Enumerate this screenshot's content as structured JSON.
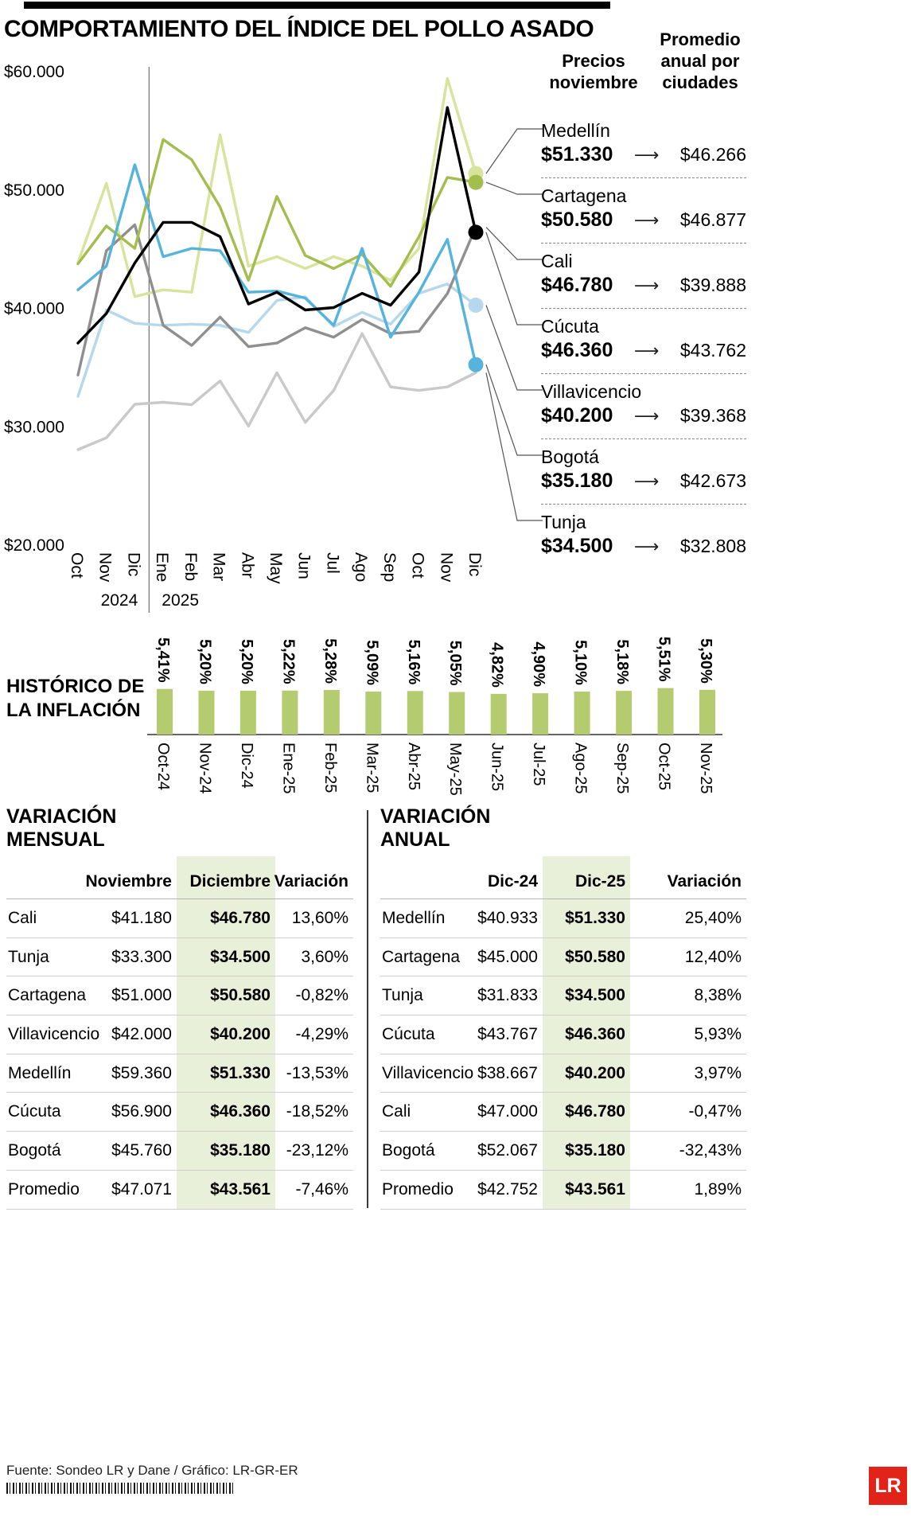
{
  "title": "COMPORTAMIENTO DEL ÍNDICE DEL POLLO ASADO",
  "legend": {
    "col1_header": "Precios noviembre",
    "col2_header": "Promedio anual por ciudades",
    "arrow_glyph": "⟶",
    "entries": [
      {
        "city": "Medellín",
        "price": "$51.330",
        "avg": "$46.266"
      },
      {
        "city": "Cartagena",
        "price": "$50.580",
        "avg": "$46.877"
      },
      {
        "city": "Cali",
        "price": "$46.780",
        "avg": "$39.888"
      },
      {
        "city": "Cúcuta",
        "price": "$46.360",
        "avg": "$43.762"
      },
      {
        "city": "Villavicencio",
        "price": "$40.200",
        "avg": "$39.368"
      },
      {
        "city": "Bogotá",
        "price": "$35.180",
        "avg": "$42.673"
      },
      {
        "city": "Tunja",
        "price": "$34.500",
        "avg": "$32.808"
      }
    ]
  },
  "chart_data": [
    {
      "type": "line",
      "title": "COMPORTAMIENTO DEL ÍNDICE DEL POLLO ASADO",
      "x": [
        "Oct",
        "Nov",
        "Dic",
        "Ene",
        "Feb",
        "Mar",
        "Abr",
        "May",
        "Jun",
        "Jul",
        "Ago",
        "Sep",
        "Oct",
        "Nov",
        "Dic"
      ],
      "year_groups": [
        {
          "label": "2024",
          "months": 3
        },
        {
          "label": "2025",
          "months": 12
        }
      ],
      "ylim": [
        20000,
        60000
      ],
      "yticks": [
        {
          "label": "$60.000",
          "value": 60000
        },
        {
          "label": "$50.000",
          "value": 50000
        },
        {
          "label": "$40.000",
          "value": 40000
        },
        {
          "label": "$30.000",
          "value": 30000
        },
        {
          "label": "$20.000",
          "value": 20000
        }
      ],
      "series": [
        {
          "name": "Medellín",
          "color": "#d8e39c",
          "dot": true,
          "z": 1,
          "values": [
            43800,
            50500,
            40933,
            41500,
            41300,
            54600,
            43500,
            44300,
            43300,
            44300,
            43500,
            42300,
            45000,
            59360,
            51330
          ]
        },
        {
          "name": "Cartagena",
          "color": "#a3bd4f",
          "dot": true,
          "z": 5,
          "values": [
            43700,
            46900,
            45000,
            54200,
            52500,
            48500,
            42300,
            49400,
            44400,
            43300,
            44500,
            41800,
            46000,
            51000,
            50580
          ]
        },
        {
          "name": "Cali",
          "color": "#8f8f8f",
          "dot": false,
          "z": 4,
          "values": [
            34300,
            44800,
            47000,
            38500,
            36800,
            39200,
            36700,
            37000,
            38300,
            37500,
            39000,
            37800,
            38000,
            41180,
            46780
          ]
        },
        {
          "name": "Cúcuta",
          "color": "#000000",
          "dot": true,
          "z": 7,
          "values": [
            37000,
            39500,
            43767,
            47200,
            47200,
            46000,
            40300,
            41300,
            39800,
            40000,
            41200,
            40200,
            43000,
            56900,
            46360
          ]
        },
        {
          "name": "Villavicencio",
          "color": "#b5d8ec",
          "dot": true,
          "z": 3,
          "values": [
            32500,
            39800,
            38667,
            38500,
            38600,
            38500,
            37900,
            40600,
            40900,
            38400,
            39600,
            38600,
            41200,
            42000,
            40200
          ]
        },
        {
          "name": "Bogotá",
          "color": "#56b3dc",
          "dot": true,
          "z": 6,
          "values": [
            41500,
            43500,
            52067,
            44300,
            45000,
            44800,
            41300,
            41400,
            40800,
            38500,
            45000,
            37500,
            41300,
            45760,
            35180
          ]
        },
        {
          "name": "Tunja",
          "color": "#c9c9c9",
          "dot": false,
          "z": 2,
          "values": [
            28000,
            29000,
            31833,
            32000,
            31800,
            33800,
            30000,
            34500,
            30300,
            33000,
            37800,
            33300,
            33000,
            33300,
            34500
          ]
        }
      ]
    },
    {
      "type": "bar",
      "title": "HISTÓRICO DE LA INFLACIÓN",
      "categories": [
        "Oct-24",
        "Nov-24",
        "Dic-24",
        "Ene-25",
        "Feb-25",
        "Mar-25",
        "Abr-25",
        "May-25",
        "Jun-25",
        "Jul-25",
        "Ago-25",
        "Sep-25",
        "Oct-25",
        "Nov-25"
      ],
      "values": [
        5.41,
        5.2,
        5.2,
        5.22,
        5.28,
        5.09,
        5.16,
        5.05,
        4.82,
        4.9,
        5.1,
        5.18,
        5.51,
        5.3
      ],
      "labels": [
        "5,41%",
        "5,20%",
        "5,20%",
        "5,22%",
        "5,28%",
        "5,09%",
        "5,16%",
        "5,05%",
        "4,82%",
        "4,90%",
        "5,10%",
        "5,18%",
        "5,51%",
        "5,30%"
      ],
      "bar_color": "#b5cb6f"
    }
  ],
  "tables": {
    "monthly": {
      "title": "VARIACIÓN MENSUAL",
      "headers": [
        "",
        "Noviembre",
        "Diciembre",
        "Variación"
      ],
      "highlight_col": 2,
      "rows": [
        [
          "Cali",
          "$41.180",
          "$46.780",
          "13,60%"
        ],
        [
          "Tunja",
          "$33.300",
          "$34.500",
          "3,60%"
        ],
        [
          "Cartagena",
          "$51.000",
          "$50.580",
          "-0,82%"
        ],
        [
          "Villavicencio",
          "$42.000",
          "$40.200",
          "-4,29%"
        ],
        [
          "Medellín",
          "$59.360",
          "$51.330",
          "-13,53%"
        ],
        [
          "Cúcuta",
          "$56.900",
          "$46.360",
          "-18,52%"
        ],
        [
          "Bogotá",
          "$45.760",
          "$35.180",
          "-23,12%"
        ],
        [
          "Promedio",
          "$47.071",
          "$43.561",
          "-7,46%"
        ]
      ]
    },
    "annual": {
      "title": "VARIACIÓN ANUAL",
      "headers": [
        "",
        "Dic-24",
        "Dic-25",
        "Variación"
      ],
      "highlight_col": 2,
      "rows": [
        [
          "Medellín",
          "$40.933",
          "$51.330",
          "25,40%"
        ],
        [
          "Cartagena",
          "$45.000",
          "$50.580",
          "12,40%"
        ],
        [
          "Tunja",
          "$31.833",
          "$34.500",
          "8,38%"
        ],
        [
          "Cúcuta",
          "$43.767",
          "$46.360",
          "5,93%"
        ],
        [
          "Villavicencio",
          "$38.667",
          "$40.200",
          "3,97%"
        ],
        [
          "Cali",
          "$47.000",
          "$46.780",
          "-0,47%"
        ],
        [
          "Bogotá",
          "$52.067",
          "$35.180",
          "-32,43%"
        ],
        [
          "Promedio",
          "$42.752",
          "$43.561",
          "1,89%"
        ]
      ]
    }
  },
  "colors": {
    "highlight": "#e9f0da",
    "logo_red": "#e2231a",
    "bar_green": "#b5cb6f"
  },
  "footer": {
    "source": "Fuente: Sondeo LR y Dane / Gráfico: LR-GR-ER",
    "logo_text": "LR"
  }
}
